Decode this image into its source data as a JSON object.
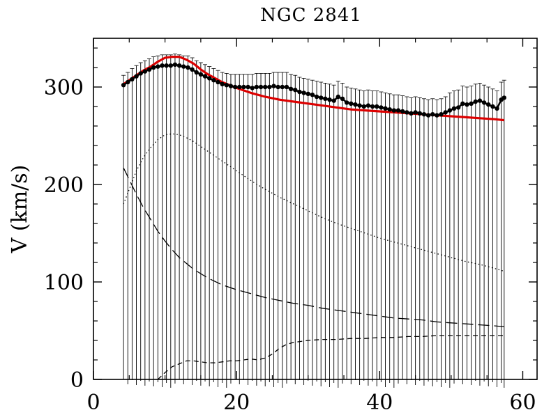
{
  "chart_data": {
    "type": "line",
    "title": "NGC 2841",
    "xlabel": "",
    "ylabel": "V (km/s)",
    "xlim": [
      0,
      62
    ],
    "ylim": [
      0,
      350
    ],
    "x_ticks": [
      0,
      20,
      40,
      60
    ],
    "y_ticks": [
      0,
      100,
      200,
      300
    ],
    "grid": false,
    "legend": "none",
    "colors": {
      "model": "#dd0000",
      "observed": "#000000",
      "components": "#000000"
    },
    "series": [
      {
        "kind": "observed-points-with-errorbars",
        "x": [
          4.2,
          4.8,
          5.4,
          6,
          6.6,
          7.2,
          7.8,
          8.4,
          9,
          9.6,
          10.2,
          10.8,
          11.4,
          12,
          12.6,
          13.2,
          13.8,
          14.4,
          15,
          15.6,
          16.2,
          16.8,
          17.4,
          18,
          18.6,
          19.2,
          19.8,
          20.4,
          21,
          21.6,
          22.2,
          22.8,
          23.4,
          24,
          24.6,
          25.2,
          25.8,
          26.4,
          27,
          27.6,
          28.2,
          28.8,
          29.4,
          30,
          30.6,
          31.2,
          31.8,
          32.4,
          33,
          33.6,
          34.2,
          34.8,
          35.4,
          36,
          36.6,
          37.2,
          37.8,
          38.4,
          39,
          39.6,
          40.2,
          40.8,
          41.4,
          42,
          42.6,
          43.2,
          43.8,
          44.4,
          45,
          45.6,
          46.2,
          46.8,
          47.4,
          48,
          48.6,
          49.2,
          49.8,
          50.4,
          51,
          51.6,
          52.2,
          52.8,
          53.4,
          54,
          54.6,
          55.2,
          55.8,
          56.4,
          57,
          57.4
        ],
        "y": [
          302,
          305,
          308,
          311,
          314,
          316,
          318,
          320,
          321,
          322,
          322,
          322,
          323,
          322,
          321,
          320,
          318,
          315,
          313,
          311,
          309,
          307,
          305,
          303,
          302,
          301,
          300,
          300,
          300,
          300,
          299,
          300,
          300,
          300,
          300,
          301,
          300,
          300,
          300,
          298,
          297,
          295,
          294,
          293,
          292,
          290,
          289,
          288,
          287,
          286,
          290,
          288,
          284,
          283,
          282,
          281,
          280,
          281,
          280,
          280,
          279,
          278,
          277,
          276,
          276,
          275,
          274,
          273,
          274,
          273,
          272,
          271,
          272,
          271,
          272,
          274,
          276,
          278,
          279,
          283,
          282,
          283,
          285,
          286,
          284,
          282,
          280,
          278,
          287,
          289
        ],
        "err_up": [
          10,
          10,
          11,
          11,
          11,
          11,
          11,
          11,
          11,
          11,
          11,
          11,
          11,
          11,
          11,
          12,
          12,
          12,
          12,
          12,
          12,
          12,
          12,
          12,
          12,
          12,
          13,
          13,
          13,
          13,
          14,
          14,
          14,
          14,
          14,
          14,
          15,
          15,
          15,
          15,
          15,
          15,
          15,
          15,
          15,
          16,
          16,
          16,
          16,
          16,
          16,
          16,
          16,
          16,
          16,
          16,
          16,
          16,
          16,
          16,
          16,
          16,
          16,
          16,
          16,
          16,
          16,
          16,
          16,
          16,
          16,
          16,
          16,
          16,
          16,
          16,
          18,
          18,
          18,
          18,
          18,
          18,
          18,
          18,
          18,
          18,
          18,
          18,
          18,
          18
        ],
        "err_down": [
          302,
          305,
          308,
          311,
          314,
          316,
          318,
          320,
          321,
          322,
          322,
          322,
          323,
          322,
          321,
          320,
          318,
          315,
          313,
          311,
          309,
          307,
          305,
          303,
          302,
          301,
          300,
          300,
          300,
          300,
          299,
          300,
          300,
          300,
          300,
          301,
          300,
          300,
          300,
          298,
          297,
          295,
          294,
          293,
          292,
          290,
          289,
          288,
          287,
          286,
          290,
          288,
          284,
          283,
          282,
          281,
          280,
          281,
          280,
          280,
          279,
          278,
          277,
          276,
          276,
          275,
          274,
          273,
          274,
          273,
          272,
          271,
          272,
          271,
          272,
          274,
          276,
          278,
          279,
          283,
          282,
          283,
          285,
          286,
          284,
          282,
          280,
          278,
          287,
          289
        ]
      },
      {
        "kind": "model-solid-red",
        "x": [
          4.2,
          5,
          6,
          7,
          8,
          9,
          10,
          11,
          12,
          13,
          14,
          15,
          16,
          18,
          20,
          22,
          24,
          26,
          28,
          30,
          32,
          34,
          36,
          38,
          40,
          42,
          44,
          46,
          48,
          50,
          52,
          54,
          56,
          57.4
        ],
        "y": [
          303,
          307,
          312,
          317,
          321,
          326,
          330,
          331,
          331,
          328,
          324,
          318,
          313,
          305,
          299,
          294,
          290,
          287,
          285,
          283,
          281,
          279,
          277,
          276,
          275,
          274,
          273,
          272,
          271,
          270,
          269,
          268,
          267,
          266
        ]
      },
      {
        "kind": "component-dotted",
        "x": [
          4.2,
          5,
          6,
          7,
          8,
          9,
          10,
          11,
          12,
          13,
          14,
          15,
          16,
          18,
          20,
          22,
          24,
          26,
          28,
          30,
          32,
          34,
          36,
          38,
          40,
          42,
          44,
          46,
          48,
          50,
          52,
          54,
          56,
          57.4
        ],
        "y": [
          180,
          195,
          214,
          228,
          238,
          246,
          251,
          252,
          251,
          248,
          244,
          239,
          234,
          224,
          214,
          204,
          195,
          187,
          180,
          173,
          166,
          160,
          155,
          150,
          145,
          141,
          137,
          133,
          129,
          125,
          121,
          118,
          114,
          111
        ]
      },
      {
        "kind": "component-long-dash",
        "x": [
          4.2,
          5,
          6,
          7,
          8,
          9,
          10,
          11,
          12,
          14,
          16,
          18,
          20,
          22,
          24,
          26,
          28,
          30,
          32,
          34,
          36,
          38,
          40,
          42,
          44,
          46,
          48,
          50,
          52,
          54,
          56,
          57.4
        ],
        "y": [
          217,
          205,
          190,
          176,
          164,
          152,
          142,
          133,
          125,
          113,
          104,
          97,
          92,
          88,
          84,
          81,
          78,
          76,
          73,
          71,
          69,
          67,
          65,
          63,
          62,
          61,
          59,
          58,
          57,
          56,
          55,
          54
        ]
      },
      {
        "kind": "component-short-dash",
        "x": [
          9,
          10,
          11,
          12,
          13,
          14,
          15,
          16,
          17,
          18,
          19,
          20,
          21,
          22,
          23,
          24,
          25,
          26,
          27,
          28,
          30,
          32,
          34,
          36,
          38,
          40,
          42,
          44,
          46,
          48,
          50,
          52,
          54,
          56,
          57.4
        ],
        "y": [
          0,
          7,
          13,
          16,
          19,
          19,
          18,
          17,
          17,
          18,
          19,
          19,
          20,
          21,
          20,
          22,
          26,
          32,
          36,
          38,
          40,
          41,
          41,
          42,
          42,
          43,
          43,
          44,
          44,
          45,
          45,
          45,
          45,
          45,
          45
        ]
      }
    ]
  }
}
